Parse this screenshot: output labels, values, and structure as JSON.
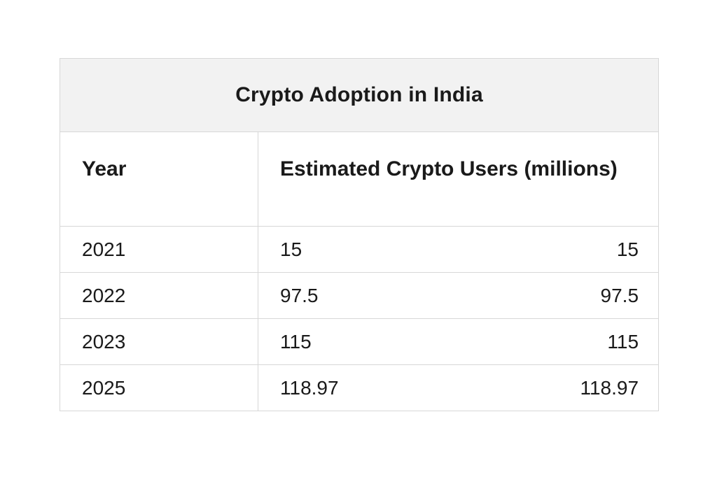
{
  "table": {
    "title": "Crypto Adoption in India",
    "columns": {
      "year": "Year",
      "users": "Estimated Crypto Users (millions)"
    },
    "rows": [
      {
        "year": "2021",
        "users": "15"
      },
      {
        "year": "2022",
        "users": "97.5"
      },
      {
        "year": "2023",
        "users": "115"
      },
      {
        "year": "2025",
        "users": "118.97"
      }
    ]
  },
  "chart_data": {
    "type": "table",
    "title": "Crypto Adoption in India",
    "columns": [
      "Year",
      "Estimated Crypto Users (millions)"
    ],
    "rows": [
      [
        "2021",
        "15",
        "15"
      ],
      [
        "2022",
        "97.5",
        "97.5"
      ],
      [
        "2023",
        "115",
        "115"
      ],
      [
        "2025",
        "118.97",
        "118.97"
      ]
    ],
    "x": [
      2021,
      2022,
      2023,
      2025
    ],
    "values": [
      15,
      97.5,
      115,
      118.97
    ],
    "xlabel": "Year",
    "ylabel": "Estimated Crypto Users (millions)",
    "note": "each users value is displayed twice per row: left-aligned and right-aligned"
  },
  "colors": {
    "title_background": "#f2f2f2",
    "border": "#d7d7d7",
    "text": "#1a1a1a",
    "page_background": "#ffffff"
  }
}
